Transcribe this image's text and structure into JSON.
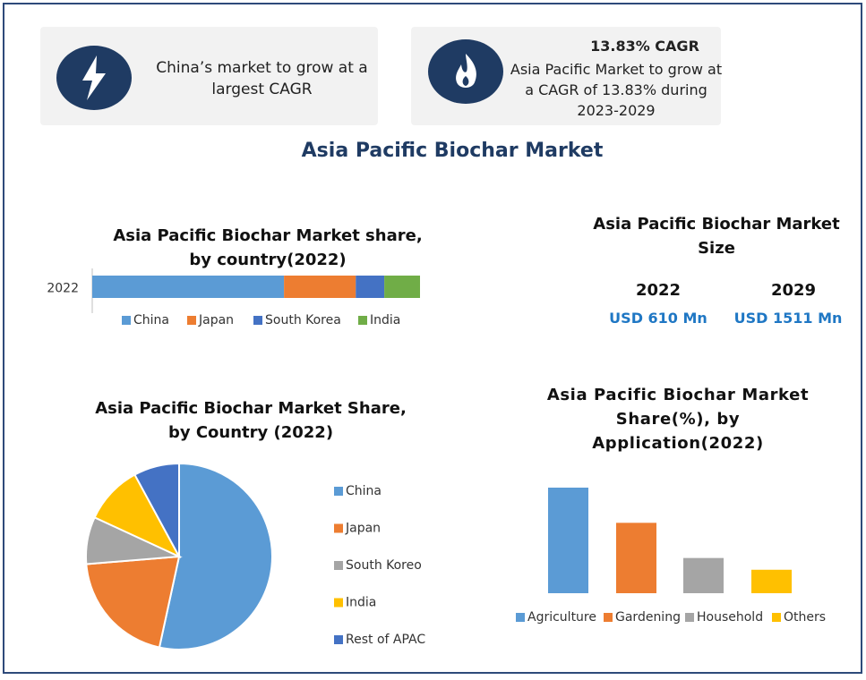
{
  "cards": [
    {
      "text": "China’s market to grow at a largest CAGR"
    },
    {
      "title": "13.83% CAGR",
      "text": "Asia Pacific Market to grow at a CAGR of 13.83% during 2023-2029"
    }
  ],
  "title": "Asia Pacific Biochar Market",
  "market_size": {
    "title": "Asia Pacific Biochar Market Size",
    "years": [
      {
        "year": "2022",
        "value": "USD 610 Mn"
      },
      {
        "year": "2029",
        "value": "USD 1511 Mn"
      }
    ]
  },
  "chart_data": [
    {
      "type": "bar",
      "orientation": "horizontal",
      "stacked": true,
      "title": "Asia Pacific Biochar Market share, by country(2022)",
      "categories": [
        "2022"
      ],
      "series": [
        {
          "name": "China",
          "color": "#5b9bd5",
          "values": [
            58.5
          ]
        },
        {
          "name": "Japan",
          "color": "#ed7d31",
          "values": [
            21.9
          ]
        },
        {
          "name": "South Korea",
          "color": "#4472c4",
          "values": [
            8.7
          ]
        },
        {
          "name": "India",
          "color": "#70ad47",
          "values": [
            10.9
          ]
        }
      ]
    },
    {
      "type": "pie",
      "title": "Asia Pacific Biochar Market Share, by Country (2022)",
      "categories": [
        "China",
        "Japan",
        "South Koreo",
        "India",
        "Rest of APAC"
      ],
      "values": [
        53.4,
        20.3,
        8.2,
        10.2,
        7.9
      ],
      "colors": [
        "#5b9bd5",
        "#ed7d31",
        "#a5a5a5",
        "#ffc000",
        "#4472c4"
      ]
    },
    {
      "type": "bar",
      "title": "Asia Pacific Biochar Market Share(%), by Application(2022)",
      "categories": [
        "Agriculture",
        "Gardening",
        "Household",
        "Others"
      ],
      "values": [
        45,
        30,
        15,
        10
      ],
      "colors": [
        "#5b9bd5",
        "#ed7d31",
        "#a5a5a5",
        "#ffc000"
      ]
    }
  ]
}
